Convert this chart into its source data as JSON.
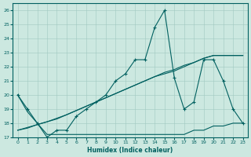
{
  "x": [
    0,
    1,
    2,
    3,
    4,
    5,
    6,
    7,
    8,
    9,
    10,
    11,
    12,
    13,
    14,
    15,
    16,
    17,
    18,
    19,
    20,
    21,
    22,
    23
  ],
  "line_main": [
    20,
    19,
    18,
    17,
    17.5,
    17.5,
    18.5,
    19,
    19.5,
    20,
    21,
    21.5,
    22.5,
    22.5,
    24.8,
    26,
    21.2,
    19,
    19.5,
    22.5,
    22.5,
    21,
    19,
    18
  ],
  "line_low": [
    20,
    18.8,
    18,
    17.2,
    17.2,
    17.2,
    17.2,
    17.2,
    17.2,
    17.2,
    17.2,
    17.2,
    17.2,
    17.2,
    17.2,
    17.2,
    17.2,
    17.2,
    17.5,
    17.5,
    17.8,
    17.8,
    18,
    18
  ],
  "line_diag2": [
    17.5,
    17.7,
    17.9,
    18.1,
    18.3,
    18.6,
    18.9,
    19.2,
    19.5,
    19.8,
    20.1,
    20.4,
    20.7,
    21.0,
    21.3,
    21.5,
    21.7,
    22.0,
    22.3,
    22.6,
    22.8,
    22.8,
    22.8,
    22.8
  ],
  "line_diag3": [
    17.5,
    17.65,
    17.9,
    18.1,
    18.35,
    18.6,
    18.9,
    19.2,
    19.5,
    19.8,
    20.1,
    20.4,
    20.7,
    21.0,
    21.3,
    21.6,
    21.8,
    22.1,
    22.3,
    22.6,
    22.8,
    22.8,
    22.8,
    22.8
  ],
  "bg_color": "#cce8e0",
  "line_color": "#006060",
  "grid_color": "#a0c8c0",
  "xlabel": "Humidex (Indice chaleur)",
  "xlim": [
    -0.5,
    23.5
  ],
  "ylim": [
    17,
    26.5
  ],
  "yticks": [
    17,
    18,
    19,
    20,
    21,
    22,
    23,
    24,
    25,
    26
  ],
  "xticks": [
    0,
    1,
    2,
    3,
    4,
    5,
    6,
    7,
    8,
    9,
    10,
    11,
    12,
    13,
    14,
    15,
    16,
    17,
    18,
    19,
    20,
    21,
    22,
    23
  ]
}
